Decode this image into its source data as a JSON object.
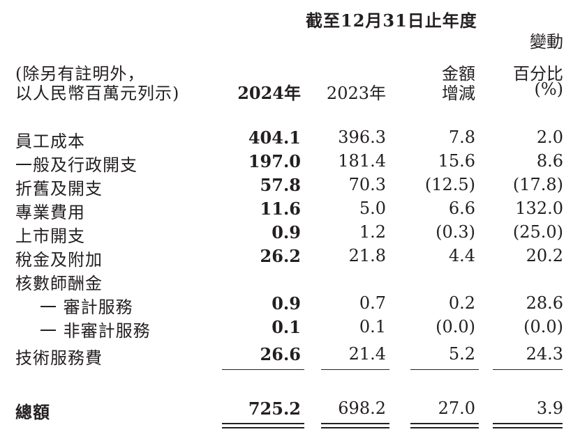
{
  "header": {
    "period": "截至12月31日止年度",
    "note_line1": "(除另有註明外，",
    "note_line2": "以人民幣百萬元列示)",
    "col_2024": "2024年",
    "col_2023": "2023年",
    "col_change_line1": "金額",
    "col_change_line2": "增減",
    "col_pct_line1": "變動",
    "col_pct_line2": "百分比",
    "col_pct_line3": "(%)"
  },
  "rows": [
    {
      "label": "員工成本",
      "v2024": "404.1",
      "v2023": "396.3",
      "change": "7.8",
      "pct": "2.0"
    },
    {
      "label": "一般及行政開支",
      "v2024": "197.0",
      "v2023": "181.4",
      "change": "15.6",
      "pct": "8.6"
    },
    {
      "label": "折舊及開支",
      "v2024": "57.8",
      "v2023": "70.3",
      "change": "(12.5)",
      "pct": "(17.8)"
    },
    {
      "label": "專業費用",
      "v2024": "11.6",
      "v2023": "5.0",
      "change": "6.6",
      "pct": "132.0"
    },
    {
      "label": "上市開支",
      "v2024": "0.9",
      "v2023": "1.2",
      "change": "(0.3)",
      "pct": "(25.0)"
    },
    {
      "label": "稅金及附加",
      "v2024": "26.2",
      "v2023": "21.8",
      "change": "4.4",
      "pct": "20.2"
    },
    {
      "label": "核數師酬金",
      "v2024": "",
      "v2023": "",
      "change": "",
      "pct": ""
    },
    {
      "label": "一 審計服務",
      "v2024": "0.9",
      "v2023": "0.7",
      "change": "0.2",
      "pct": "28.6"
    },
    {
      "label": "一 非審計服務",
      "v2024": "0.1",
      "v2023": "0.1",
      "change": "(0.0)",
      "pct": "(0.0)"
    },
    {
      "label": "技術服務費",
      "v2024": "26.6",
      "v2023": "21.4",
      "change": "5.2",
      "pct": "24.3"
    }
  ],
  "total": {
    "label": "總額",
    "v2024": "725.2",
    "v2023": "698.2",
    "change": "27.0",
    "pct": "3.9"
  }
}
